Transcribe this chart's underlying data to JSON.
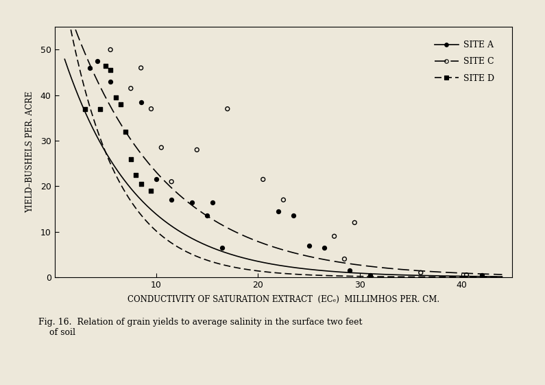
{
  "background_color": "#ede8da",
  "plot_bg": "#ede8da",
  "xlabel": "CONDUCTIVITY OF SATURATION EXTRACT  (ECₑ)  MILLIMHOS PER. CM.",
  "ylabel": "YIELD–BUSHELS PER. ACRE",
  "xlim": [
    0,
    45
  ],
  "ylim": [
    0,
    55
  ],
  "xticks": [
    10,
    20,
    30,
    40
  ],
  "yticks": [
    0,
    10,
    20,
    30,
    40,
    50
  ],
  "caption": "Fig. 16.  Relation of grain yields to average salinity in the surface two feet\n    of soil",
  "site_A_x": [
    3.5,
    4.2,
    5.5,
    8.5,
    10.0,
    11.5,
    13.5,
    15.0,
    15.5,
    16.5,
    22.0,
    23.5,
    25.0,
    26.5,
    29.0,
    31.0,
    42.0
  ],
  "site_A_y": [
    46.0,
    47.5,
    43.0,
    38.5,
    21.5,
    17.0,
    16.5,
    13.5,
    16.5,
    6.5,
    14.5,
    13.5,
    7.0,
    6.5,
    1.5,
    0.5,
    0.5
  ],
  "site_C_x": [
    5.5,
    7.5,
    8.5,
    9.5,
    10.5,
    11.5,
    14.0,
    17.0,
    20.5,
    22.5,
    27.5,
    28.5,
    29.5,
    36.0,
    40.5
  ],
  "site_C_y": [
    50.0,
    41.5,
    46.0,
    37.0,
    28.5,
    21.0,
    28.0,
    37.0,
    21.5,
    17.0,
    9.0,
    4.0,
    12.0,
    1.0,
    0.5
  ],
  "site_D_x": [
    3.0,
    4.5,
    5.0,
    5.5,
    6.0,
    6.5,
    7.0,
    7.5,
    8.0,
    8.5,
    9.5
  ],
  "site_D_y": [
    37.0,
    37.0,
    46.5,
    45.5,
    39.5,
    38.0,
    32.0,
    26.0,
    22.5,
    20.5,
    19.0
  ],
  "curve_A_a": 55.0,
  "curve_A_b": 0.138,
  "curve_C_a": 68.0,
  "curve_C_b": 0.108,
  "curve_D_a": 75.0,
  "curve_D_b": 0.2
}
